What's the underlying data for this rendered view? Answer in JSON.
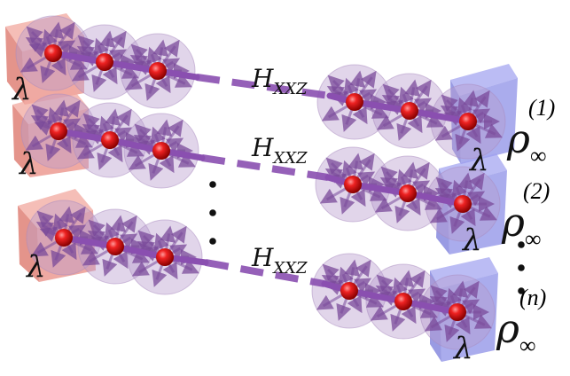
{
  "figure": {
    "lambda_symbol": "λ",
    "hamiltonian": {
      "base": "H",
      "subscript": "XXZ"
    },
    "rho": {
      "base": "ρ",
      "subscript": "∞"
    },
    "chains": [
      {
        "index_label": "(1)"
      },
      {
        "index_label": "(2)"
      },
      {
        "index_label": "(n)"
      }
    ],
    "ellipsis_dots": 3,
    "colors": {
      "left_bath": "#e8857a",
      "right_bath": "#7d7fe4",
      "spin_ball": "#dd1111",
      "chain_link": "#8a4fb0",
      "spin_sphere": "#b89ccc",
      "arrow": "#7a4a9a"
    }
  }
}
